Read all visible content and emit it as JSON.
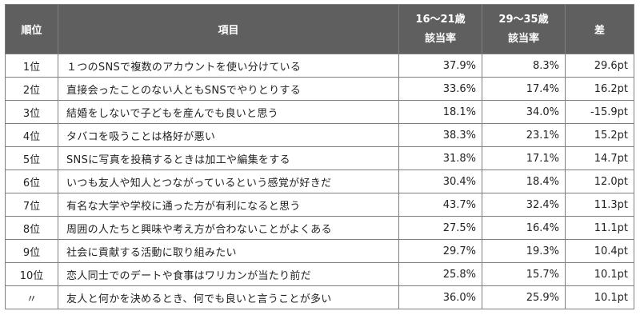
{
  "headers": {
    "rank": "順位",
    "item": "項目",
    "young_line1": "16～21歳",
    "young_line2": "該当率",
    "older_line1": "29～35歳",
    "older_line2": "該当率",
    "diff": "差"
  },
  "rows": [
    {
      "rank": "1位",
      "item": "１つのSNSで複数のアカウントを使い分けている",
      "young": "37.9%",
      "older": "8.3%",
      "diff": "29.6pt"
    },
    {
      "rank": "2位",
      "item": "直接会ったことのない人ともSNSでやりとりする",
      "young": "33.6%",
      "older": "17.4%",
      "diff": "16.2pt"
    },
    {
      "rank": "3位",
      "item": "結婚をしないで子どもを産んでも良いと思う",
      "young": "18.1%",
      "older": "34.0%",
      "diff": "-15.9pt"
    },
    {
      "rank": "4位",
      "item": "タバコを吸うことは格好が悪い",
      "young": "38.3%",
      "older": "23.1%",
      "diff": "15.2pt"
    },
    {
      "rank": "5位",
      "item": "SNSに写真を投稿するときは加工や編集をする",
      "young": "31.8%",
      "older": "17.1%",
      "diff": "14.7pt"
    },
    {
      "rank": "6位",
      "item": "いつも友人や知人とつながっているという感覚が好きだ",
      "young": "30.4%",
      "older": "18.4%",
      "diff": "12.0pt"
    },
    {
      "rank": "7位",
      "item": "有名な大学や学校に通った方が有利になると思う",
      "young": "43.7%",
      "older": "32.4%",
      "diff": "11.3pt"
    },
    {
      "rank": "8位",
      "item": "周囲の人たちと興味や考え方が合わないことがよくある",
      "young": "27.5%",
      "older": "16.4%",
      "diff": "11.1pt"
    },
    {
      "rank": "9位",
      "item": "社会に貢献する活動に取り組みたい",
      "young": "29.7%",
      "older": "19.3%",
      "diff": "10.4pt"
    },
    {
      "rank": "10位",
      "item": "恋人同士でのデートや食事はワリカンが当たり前だ",
      "young": "25.8%",
      "older": "15.7%",
      "diff": "10.1pt"
    },
    {
      "rank": "〃",
      "item": "友人と何かを決めるとき、何でも良いと言うことが多い",
      "young": "36.0%",
      "older": "25.9%",
      "diff": "10.1pt"
    }
  ]
}
